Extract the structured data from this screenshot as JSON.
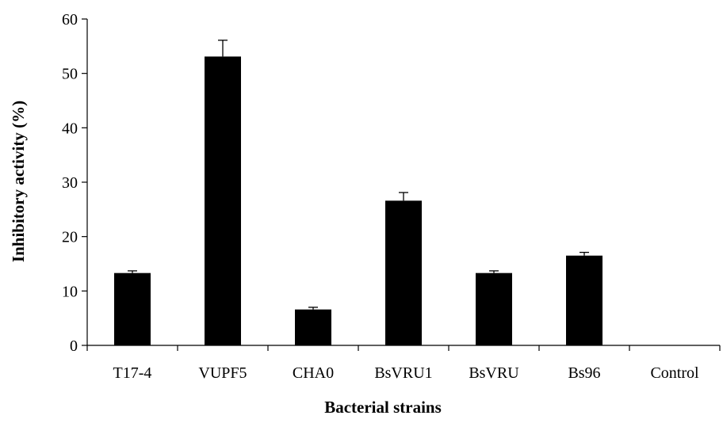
{
  "chart_data": {
    "type": "bar",
    "title": "",
    "xlabel": "Bacterial strains",
    "ylabel": "Inhibitory  activity (%)",
    "categories": [
      "T17-4",
      "VUPF5",
      "CHA0",
      "BsVRU1",
      "BsVRU",
      "Bs96",
      "Control"
    ],
    "values": [
      13.3,
      53.1,
      6.6,
      26.6,
      13.3,
      16.5,
      0
    ],
    "errors": [
      0.4,
      3.0,
      0.4,
      1.5,
      0.4,
      0.6,
      0
    ],
    "ylim": [
      0,
      60
    ],
    "yticks": [
      0,
      10,
      20,
      30,
      40,
      50,
      60
    ],
    "grid": false,
    "legend": "none",
    "bar_color": "#000000"
  }
}
